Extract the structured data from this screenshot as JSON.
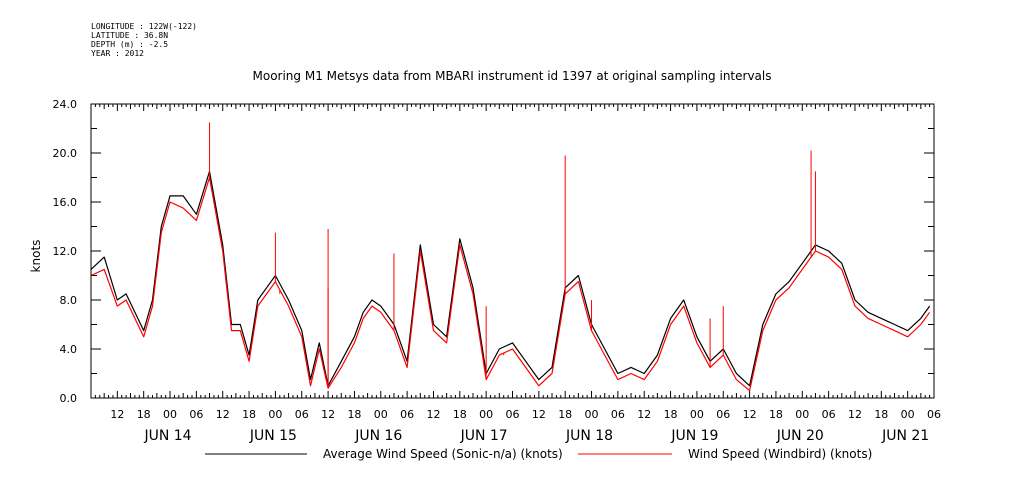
{
  "header": {
    "meta_lines": [
      "LONGITUDE : 122W(-122)",
      "LATITUDE : 36.8N",
      "DEPTH (m) : -2.5",
      "YEAR : 2012"
    ]
  },
  "chart_data": {
    "type": "line",
    "title": "Mooring M1 Metsys data from MBARI instrument id 1397 at original sampling intervals",
    "ylabel": "knots",
    "xlabel": "",
    "ylim": [
      0,
      24
    ],
    "y_ticks": [
      "0.0",
      "4.0",
      "8.0",
      "12.0",
      "16.0",
      "20.0",
      "24.0"
    ],
    "x_unit": "hours since 2012-06-13 00:00",
    "xlim": [
      6,
      198
    ],
    "hour_tick_labels": [
      "12",
      "18",
      "00",
      "06",
      "12",
      "18",
      "00",
      "06",
      "12",
      "18",
      "00",
      "06",
      "12",
      "18",
      "00",
      "06",
      "12",
      "18",
      "00",
      "06",
      "12",
      "18",
      "00",
      "06",
      "12",
      "18",
      "00",
      "06",
      "12",
      "18",
      "00",
      "06"
    ],
    "day_labels": [
      "JUN 14",
      "JUN 15",
      "JUN 16",
      "JUN 17",
      "JUN 18",
      "JUN 19",
      "JUN 20",
      "JUN 21"
    ],
    "legend_position": "bottom",
    "grid": false,
    "series": [
      {
        "name": "Average Wind Speed (Sonic-n/a) (knots)",
        "color": "#000000",
        "x": [
          6,
          9,
          12,
          14,
          16,
          18,
          20,
          22,
          24,
          27,
          30,
          33,
          36,
          38,
          40,
          42,
          44,
          46,
          48,
          51,
          54,
          56,
          58,
          60,
          63,
          66,
          68,
          70,
          72,
          75,
          78,
          81,
          84,
          87,
          90,
          93,
          96,
          99,
          102,
          105,
          108,
          111,
          114,
          117,
          120,
          123,
          126,
          129,
          132,
          135,
          138,
          141,
          144,
          147,
          150,
          153,
          156,
          159,
          162,
          165,
          168,
          171,
          174,
          177,
          180,
          183,
          186,
          189,
          192,
          195,
          197
        ],
        "y": [
          10.5,
          11.5,
          8.0,
          8.5,
          7.0,
          5.5,
          8.0,
          14.0,
          16.5,
          16.5,
          15.0,
          18.5,
          12.5,
          6.0,
          6.0,
          3.5,
          8.0,
          9.0,
          10.0,
          8.0,
          5.5,
          1.5,
          4.5,
          1.0,
          3.0,
          5.0,
          7.0,
          8.0,
          7.5,
          6.0,
          3.0,
          12.5,
          6.0,
          5.0,
          13.0,
          9.0,
          2.0,
          4.0,
          4.5,
          3.0,
          1.5,
          2.5,
          9.0,
          10.0,
          6.0,
          4.0,
          2.0,
          2.5,
          2.0,
          3.5,
          6.5,
          8.0,
          5.0,
          3.0,
          4.0,
          2.0,
          1.0,
          6.0,
          8.5,
          9.5,
          11.0,
          12.5,
          12.0,
          11.0,
          8.0,
          7.0,
          6.5,
          6.0,
          5.5,
          6.5,
          7.5
        ]
      },
      {
        "name": "Wind Speed (Windbird) (knots)",
        "color": "#ff0000",
        "x": [
          6,
          9,
          12,
          14,
          16,
          18,
          20,
          22,
          24,
          27,
          30,
          33,
          36,
          38,
          40,
          42,
          44,
          46,
          48,
          51,
          54,
          56,
          58,
          60,
          63,
          66,
          68,
          70,
          72,
          75,
          78,
          81,
          84,
          87,
          90,
          93,
          96,
          99,
          102,
          105,
          108,
          111,
          114,
          117,
          120,
          123,
          126,
          129,
          132,
          135,
          138,
          141,
          144,
          147,
          150,
          153,
          156,
          159,
          162,
          165,
          168,
          171,
          174,
          177,
          180,
          183,
          186,
          189,
          192,
          195,
          197
        ],
        "y": [
          10.0,
          10.5,
          7.5,
          8.0,
          6.5,
          5.0,
          7.5,
          13.5,
          16.0,
          15.5,
          14.5,
          18.0,
          12.0,
          5.5,
          5.5,
          3.0,
          7.5,
          8.5,
          9.5,
          7.5,
          5.0,
          1.0,
          4.0,
          0.8,
          2.5,
          4.5,
          6.5,
          7.5,
          7.0,
          5.5,
          2.5,
          12.0,
          5.5,
          4.5,
          12.5,
          8.5,
          1.5,
          3.5,
          4.0,
          2.5,
          1.0,
          2.0,
          8.5,
          9.5,
          5.5,
          3.5,
          1.5,
          2.0,
          1.5,
          3.0,
          6.0,
          7.5,
          4.5,
          2.5,
          3.5,
          1.5,
          0.6,
          5.5,
          8.0,
          9.0,
          10.5,
          12.0,
          11.5,
          10.5,
          7.5,
          6.5,
          6.0,
          5.5,
          5.0,
          6.0,
          7.0
        ]
      }
    ],
    "spikes": {
      "x": [
        33,
        48,
        49,
        60,
        60,
        75,
        96,
        100,
        114,
        120,
        147,
        150,
        170,
        171
      ],
      "y": [
        22.5,
        13.5,
        8.5,
        13.8,
        9.0,
        11.8,
        7.5,
        3.5,
        19.8,
        8.0,
        6.5,
        7.5,
        20.2,
        18.5
      ]
    }
  }
}
